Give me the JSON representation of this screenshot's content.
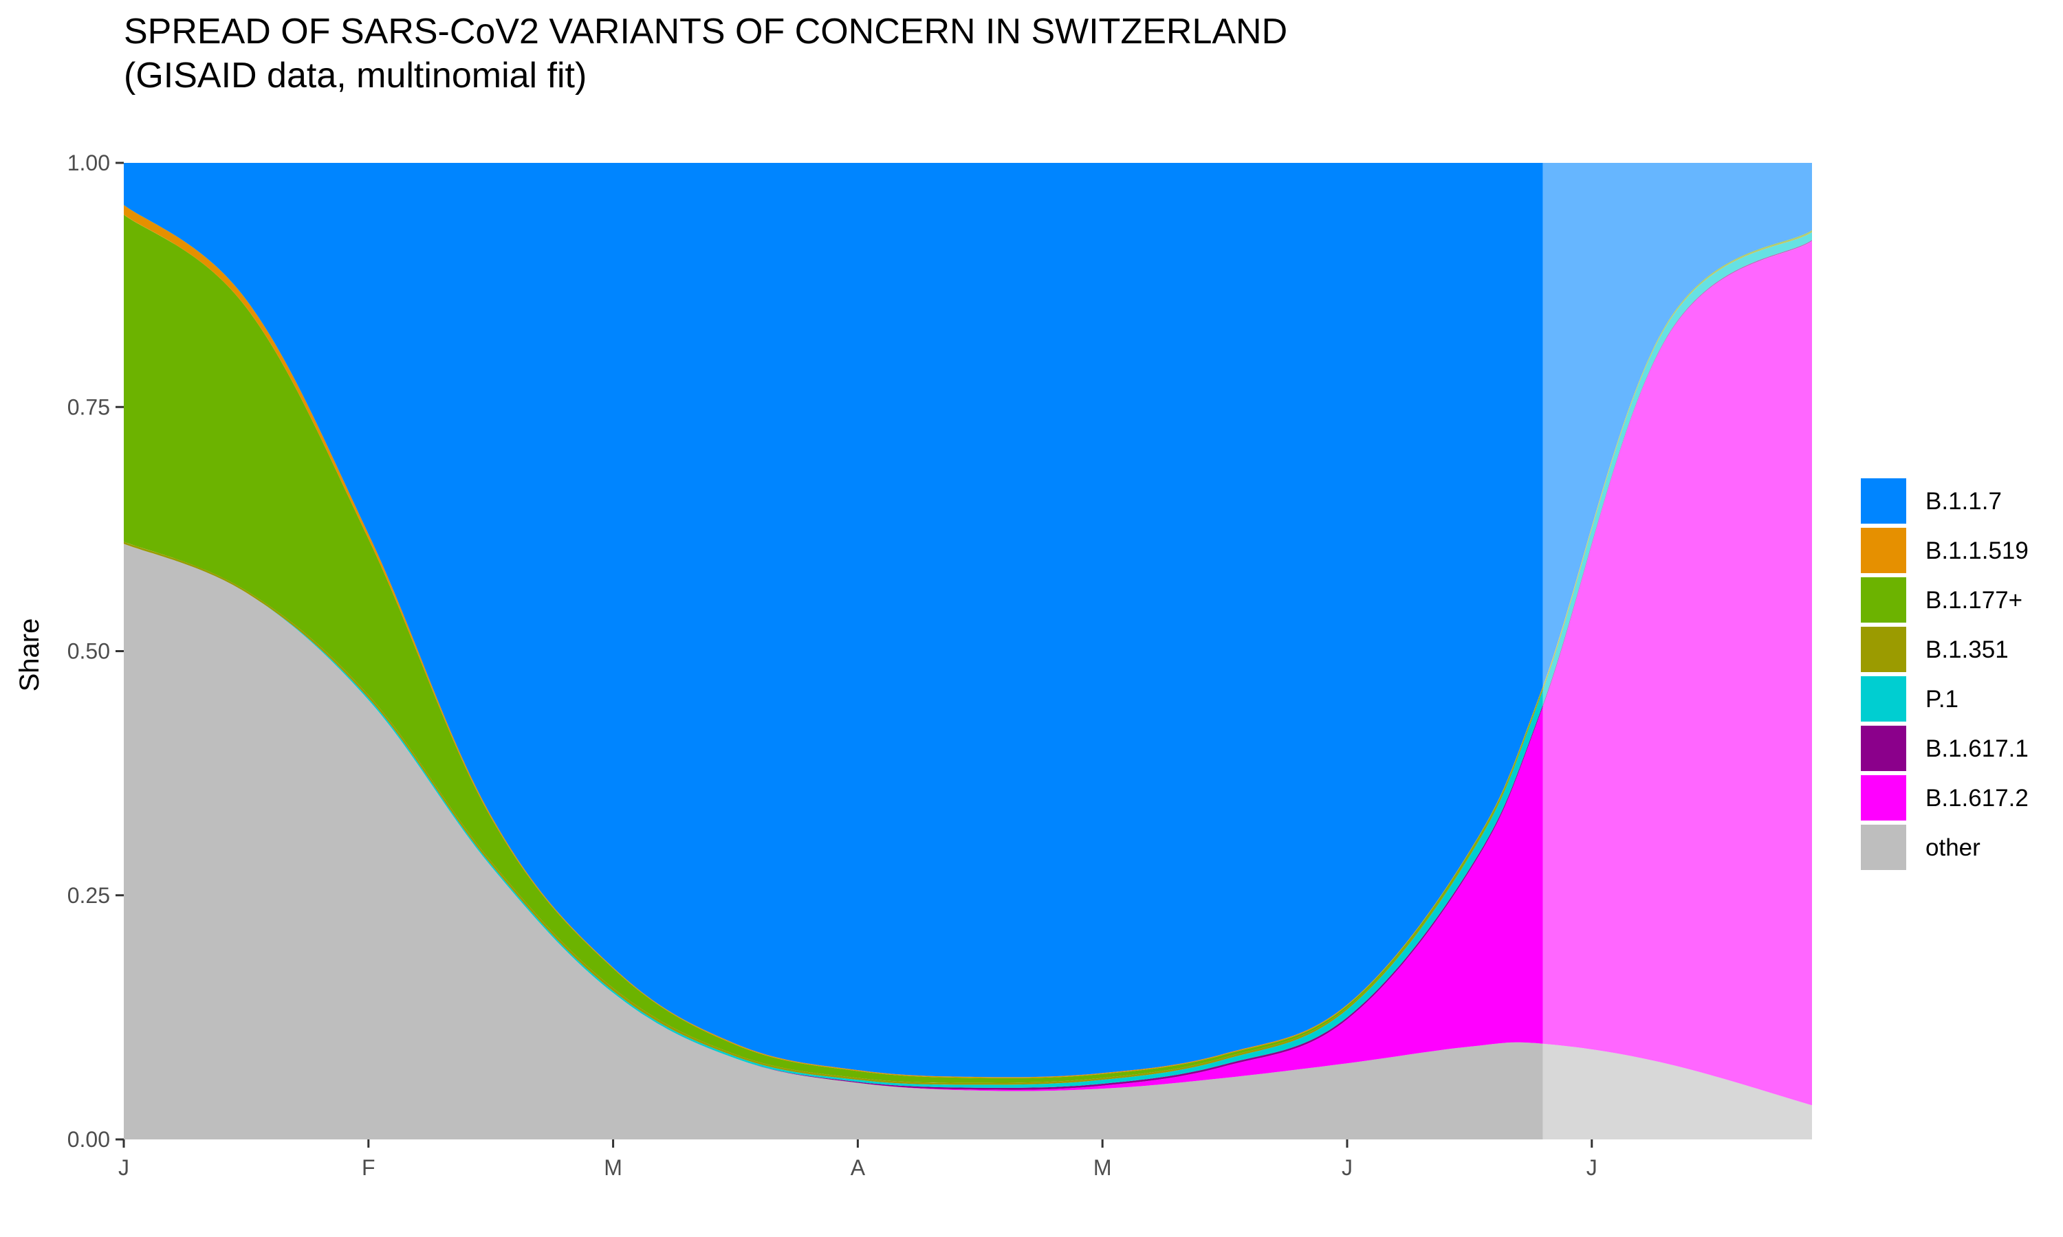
{
  "chart_data": {
    "type": "area",
    "title": "SPREAD OF SARS-CoV2 VARIANTS OF CONCERN IN SWITZERLAND",
    "subtitle": "(GISAID data, multinomial fit)",
    "xlabel": "",
    "ylabel": "Share",
    "stacked": true,
    "x_unit": "month",
    "x": [
      0,
      0.5,
      1,
      1.5,
      2,
      2.5,
      3,
      3.5,
      4,
      4.5,
      5,
      5.5,
      5.8,
      6.3,
      6.9
    ],
    "x_ticks": [
      {
        "value": 0,
        "label": "J"
      },
      {
        "value": 1,
        "label": "F"
      },
      {
        "value": 2,
        "label": "M"
      },
      {
        "value": 3,
        "label": "A"
      },
      {
        "value": 4,
        "label": "M"
      },
      {
        "value": 5,
        "label": "J"
      },
      {
        "value": 6,
        "label": "J"
      }
    ],
    "ylim": [
      0,
      1
    ],
    "y_ticks": [
      "0.00",
      "0.25",
      "0.50",
      "0.75",
      "1.00"
    ],
    "xlim": [
      0,
      6.9
    ],
    "forecast_from_x": 5.8,
    "grid": false,
    "legend_position": "right",
    "series": [
      {
        "name": "other",
        "color": "#BEBEBE",
        "forecast_color": "#D8D8D8",
        "values": [
          0.61,
          0.56,
          0.45,
          0.28,
          0.15,
          0.083,
          0.058,
          0.05,
          0.052,
          0.063,
          0.078,
          0.095,
          0.098,
          0.078,
          0.035
        ]
      },
      {
        "name": "B.1.617.2",
        "color": "#FF00FF",
        "forecast_color": "#FF66FF",
        "values": [
          0,
          0,
          0,
          0,
          0,
          0,
          0,
          0.001,
          0.003,
          0.012,
          0.045,
          0.18,
          0.345,
          0.74,
          0.885
        ]
      },
      {
        "name": "B.1.617.1",
        "color": "#8B008B",
        "forecast_color": "#B866B8",
        "values": [
          0,
          0,
          0,
          0,
          0,
          0,
          0.001,
          0.002,
          0.002,
          0.002,
          0.002,
          0.002,
          0.002,
          0.001,
          0.001
        ]
      },
      {
        "name": "P.1",
        "color": "#00CED1",
        "forecast_color": "#66E1E3",
        "values": [
          0,
          0,
          0.002,
          0.002,
          0.002,
          0.002,
          0.002,
          0.003,
          0.004,
          0.005,
          0.008,
          0.013,
          0.015,
          0.012,
          0.008
        ]
      },
      {
        "name": "B.1.351",
        "color": "#9B9B00",
        "forecast_color": "#C3C366",
        "values": [
          0.002,
          0.002,
          0.003,
          0.003,
          0.003,
          0.002,
          0.002,
          0.002,
          0.002,
          0.002,
          0.002,
          0.002,
          0.002,
          0.001,
          0.001
        ]
      },
      {
        "name": "B.1.177+",
        "color": "#6CB300",
        "forecast_color": "#A7D166",
        "values": [
          0.335,
          0.29,
          0.16,
          0.045,
          0.02,
          0.01,
          0.007,
          0.005,
          0.004,
          0.003,
          0.002,
          0.002,
          0.001,
          0.001,
          0.001
        ]
      },
      {
        "name": "B.1.1.519",
        "color": "#E69000",
        "forecast_color": "#F0BC66",
        "values": [
          0.01,
          0.008,
          0.005,
          0.002,
          0.001,
          0.001,
          0.001,
          0.001,
          0.001,
          0.001,
          0.001,
          0.001,
          0.001,
          0,
          0
        ]
      },
      {
        "name": "B.1.1.7",
        "color": "#0085FF",
        "forecast_color": "#66B6FF",
        "values": [
          0.043,
          0.14,
          0.38,
          0.668,
          0.824,
          0.902,
          0.929,
          0.936,
          0.932,
          0.912,
          0.862,
          0.705,
          0.536,
          0.167,
          0.069
        ]
      }
    ],
    "legend_order": [
      "B.1.1.7",
      "B.1.1.519",
      "B.1.177+",
      "B.1.351",
      "P.1",
      "B.1.617.1",
      "B.1.617.2",
      "other"
    ]
  }
}
